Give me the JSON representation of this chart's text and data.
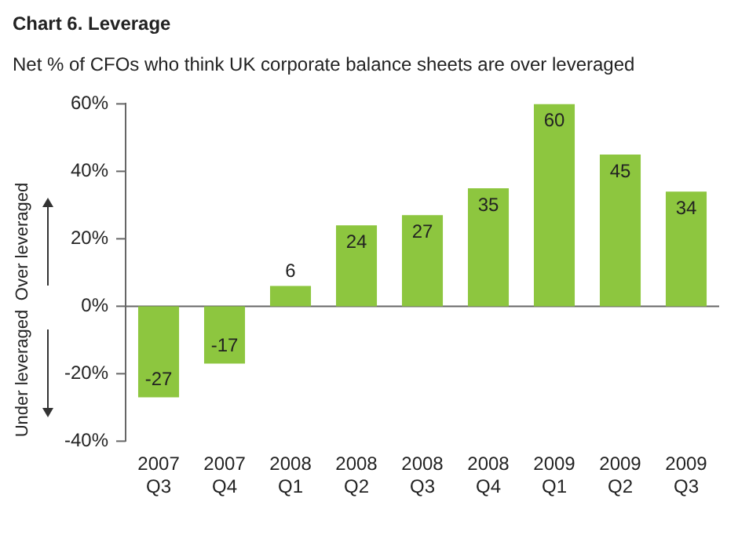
{
  "chart_data": {
    "type": "bar",
    "title": "Chart 6. Leverage",
    "subtitle": "Net % of CFOs who think UK corporate balance sheets are over leveraged",
    "annotations": [
      "Over leveraged",
      "Under leveraged"
    ],
    "categories": [
      "2007 Q3",
      "2007 Q4",
      "2008 Q1",
      "2008 Q2",
      "2008 Q3",
      "2008 Q4",
      "2009 Q1",
      "2009 Q2",
      "2009 Q3"
    ],
    "values": [
      -27,
      -17,
      6,
      24,
      27,
      35,
      60,
      45,
      34
    ],
    "color": "#8dc63f",
    "ylim": [
      -40,
      60
    ],
    "yticks": [
      {
        "value": -40,
        "label": "-40%"
      },
      {
        "value": -20,
        "label": "-20%"
      },
      {
        "value": 0,
        "label": "0%"
      },
      {
        "value": 20,
        "label": "20%"
      },
      {
        "value": 40,
        "label": "40%"
      },
      {
        "value": 60,
        "label": "60%"
      }
    ],
    "ref_lines": [
      {
        "axis": "y",
        "value": 0,
        "color": "#666666"
      }
    ],
    "data_labels": true,
    "grid": false,
    "legend": false
  }
}
